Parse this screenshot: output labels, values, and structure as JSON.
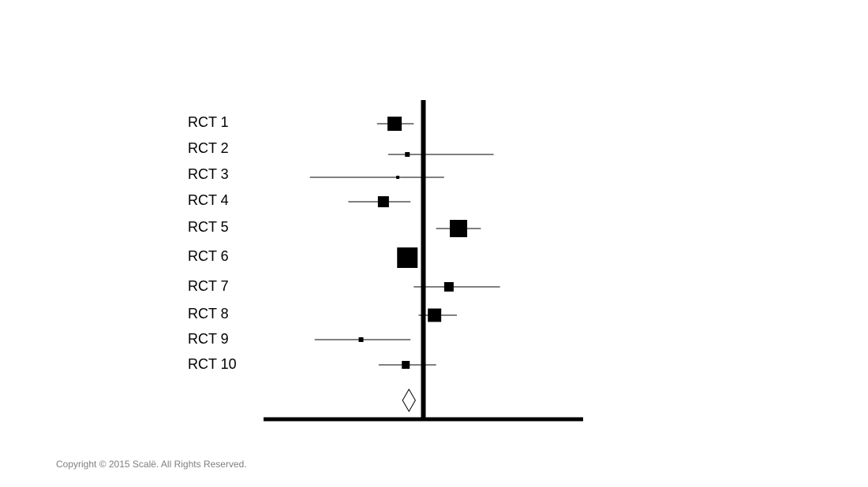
{
  "chart_data": {
    "type": "forest",
    "categories": [
      "RCT 1",
      "RCT 2",
      "RCT 3",
      "RCT 4",
      "RCT 5",
      "RCT 6",
      "RCT 7",
      "RCT 8",
      "RCT 9",
      "RCT 10"
    ],
    "values": [
      -0.18,
      -0.1,
      -0.16,
      -0.25,
      0.22,
      -0.1,
      0.16,
      0.07,
      -0.39,
      -0.11
    ],
    "lower": [
      -0.29,
      -0.22,
      -0.71,
      -0.47,
      0.08,
      -0.15,
      -0.06,
      -0.03,
      -0.68,
      -0.28
    ],
    "upper": [
      -0.06,
      0.44,
      0.13,
      -0.08,
      0.36,
      -0.05,
      0.48,
      0.21,
      -0.08,
      0.08
    ],
    "weights": [
      18,
      6,
      4,
      14,
      22,
      26,
      12,
      17,
      6,
      10
    ],
    "pooled": {
      "value": -0.09,
      "lower": -0.13,
      "upper": -0.05
    },
    "xlim": [
      -1,
      1
    ],
    "color": "#000000"
  },
  "copyright": "Copyright © 2015 Scalë. All Rights Reserved."
}
